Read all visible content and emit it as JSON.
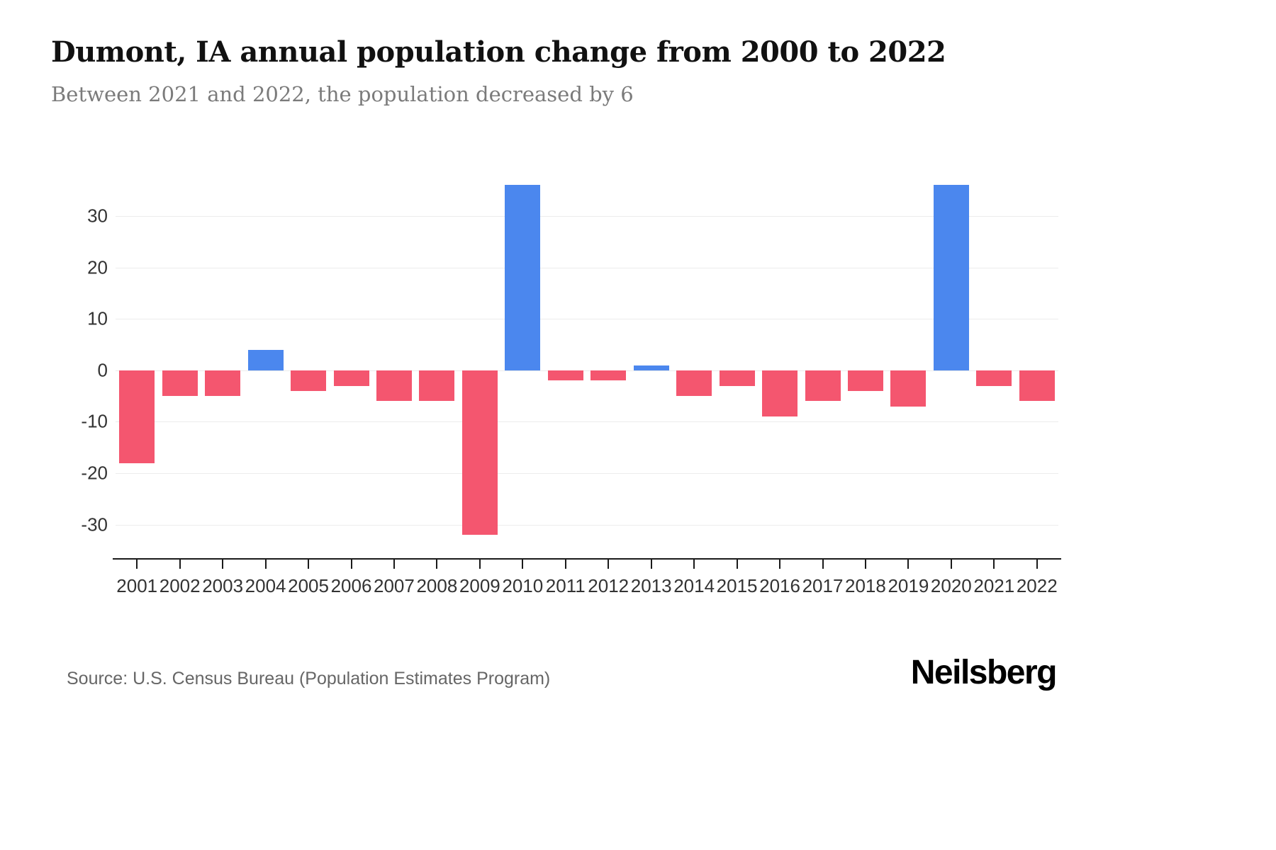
{
  "header": {
    "title": "Dumont, IA annual population change from 2000 to 2022",
    "subtitle": "Between 2021 and 2022, the population decreased by 6"
  },
  "chart_data": {
    "type": "bar",
    "title": "Dumont, IA annual population change from 2000 to 2022",
    "xlabel": "",
    "ylabel": "",
    "categories": [
      "2001",
      "2002",
      "2003",
      "2004",
      "2005",
      "2006",
      "2007",
      "2008",
      "2009",
      "2010",
      "2011",
      "2012",
      "2013",
      "2014",
      "2015",
      "2016",
      "2017",
      "2018",
      "2019",
      "2020",
      "2021",
      "2022"
    ],
    "values": [
      -18,
      -5,
      -5,
      4,
      -4,
      -3,
      -6,
      -6,
      -32,
      36,
      -2,
      -2,
      1,
      -5,
      -3,
      -9,
      -6,
      -4,
      -7,
      36,
      -3,
      -6
    ],
    "ylim": [
      -36.5,
      37
    ],
    "yticks": [
      30,
      20,
      10,
      0,
      -10,
      -20,
      -30
    ],
    "grid": true,
    "legend": "none",
    "positive_color": "#4b87ee",
    "negative_color": "#f4566f",
    "gridline_color": "#ececec",
    "axis_color": "#1a1a1a"
  },
  "footer": {
    "source": "Source: U.S. Census Bureau (Population Estimates Program)",
    "brand": "Neilsberg"
  }
}
